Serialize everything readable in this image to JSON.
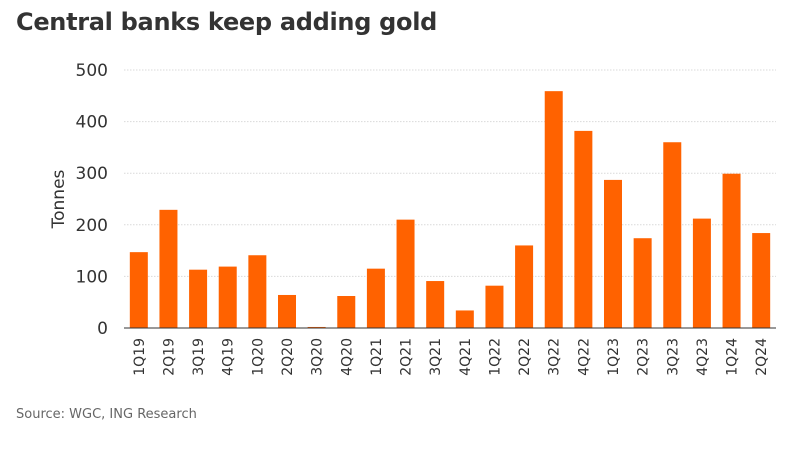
{
  "title": "Central banks keep adding gold",
  "source": "Source: WGC, ING Research",
  "colors": {
    "bar": "#ff6200",
    "grid": "#d9d9d9",
    "axis": "#333333"
  },
  "chart_data": {
    "type": "bar",
    "title": "Central banks keep adding gold",
    "xlabel": "",
    "ylabel": "Tonnes",
    "ylim": [
      0,
      500
    ],
    "yticks": [
      0,
      100,
      200,
      300,
      400,
      500
    ],
    "grid": true,
    "categories": [
      "1Q19",
      "2Q19",
      "3Q19",
      "4Q19",
      "1Q20",
      "2Q20",
      "3Q20",
      "4Q20",
      "1Q21",
      "2Q21",
      "3Q21",
      "4Q21",
      "1Q22",
      "2Q22",
      "3Q22",
      "4Q22",
      "1Q23",
      "2Q23",
      "3Q23",
      "4Q23",
      "1Q24",
      "2Q24"
    ],
    "values": [
      147,
      229,
      113,
      119,
      141,
      64,
      2,
      62,
      115,
      210,
      91,
      34,
      82,
      160,
      459,
      382,
      287,
      174,
      360,
      212,
      299,
      184
    ]
  }
}
